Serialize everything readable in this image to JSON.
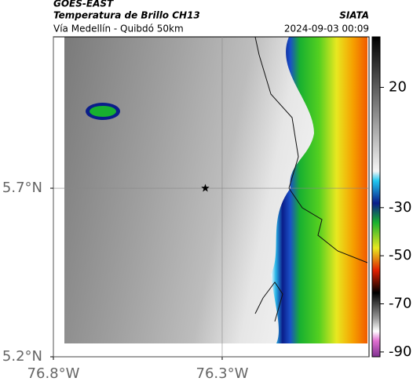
{
  "chart_data": {
    "type": "map",
    "title": "GOES-EAST",
    "subtitle": "Temperatura de Brillo CH13",
    "source": "SIATA",
    "route": "Vía Medellín - Quibdó 50km",
    "timestamp": "2024-09-03 00:09",
    "xlim": [
      -76.8,
      -75.865
    ],
    "ylim": [
      5.2,
      6.149
    ],
    "xticks": [
      {
        "value": -76.8,
        "label": "76.8°W"
      },
      {
        "value": -76.3,
        "label": "76.3°W"
      }
    ],
    "yticks": [
      {
        "value": 5.7,
        "label": "5.7°N"
      },
      {
        "value": 5.2,
        "label": "5.2°N"
      }
    ],
    "grid": true,
    "marker": {
      "x": -76.35,
      "y": 5.7
    },
    "colorbar": {
      "lim": [
        -92,
        41
      ],
      "ticks": [
        20,
        -30,
        -50,
        -70,
        -90
      ]
    }
  }
}
